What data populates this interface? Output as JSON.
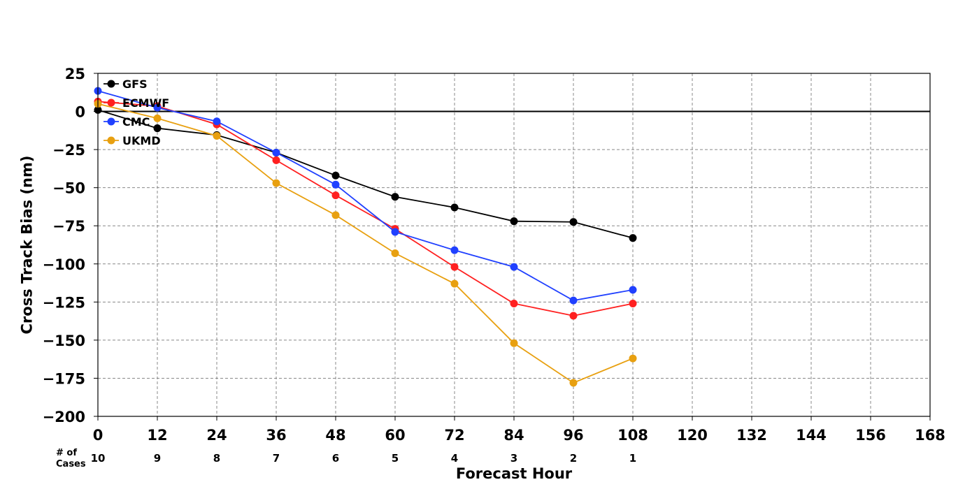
{
  "chart_data": {
    "type": "line",
    "title": "",
    "xlabel": "Forecast Hour",
    "ylabel": "Cross Track Bias (nm)",
    "xlim": [
      0,
      168
    ],
    "ylim": [
      -200,
      25
    ],
    "xticks": [
      0,
      12,
      24,
      36,
      48,
      60,
      72,
      84,
      96,
      108,
      120,
      132,
      144,
      156,
      168
    ],
    "yticks": [
      25,
      0,
      -25,
      -50,
      -75,
      -100,
      -125,
      -150,
      -175,
      -200
    ],
    "ytick_labels": [
      "25",
      "0",
      "−25",
      "−50",
      "−75",
      "−100",
      "−125",
      "−150",
      "−175",
      "−200"
    ],
    "grid": true,
    "zero_line": true,
    "legend_position": "top-left",
    "x": [
      0,
      12,
      24,
      36,
      48,
      60,
      72,
      84,
      96,
      108
    ],
    "series": [
      {
        "name": "GFS",
        "color": "#000000",
        "values": [
          1,
          -11,
          -15.5,
          -27,
          -42,
          -56,
          -63,
          -72,
          -72.5,
          -83
        ]
      },
      {
        "name": "ECMWF",
        "color": "#ff2020",
        "values": [
          6.5,
          3.5,
          -8.5,
          -32,
          -55,
          -77,
          -102,
          -126,
          -134,
          -126
        ]
      },
      {
        "name": "CMC",
        "color": "#2040ff",
        "values": [
          13.5,
          2.5,
          -6.5,
          -27,
          -48,
          -79,
          -91,
          -102,
          -124,
          -117
        ]
      },
      {
        "name": "UKMD",
        "color": "#e8a010",
        "values": [
          5,
          -4.5,
          -16,
          -47,
          -68,
          -93,
          -113,
          -152,
          -178,
          -162
        ]
      }
    ],
    "cases_label": "# of\nCases",
    "cases_label_lines": [
      "# of",
      "Cases"
    ],
    "cases": [
      "10",
      "9",
      "8",
      "7",
      "6",
      "5",
      "4",
      "3",
      "2",
      "1"
    ]
  }
}
